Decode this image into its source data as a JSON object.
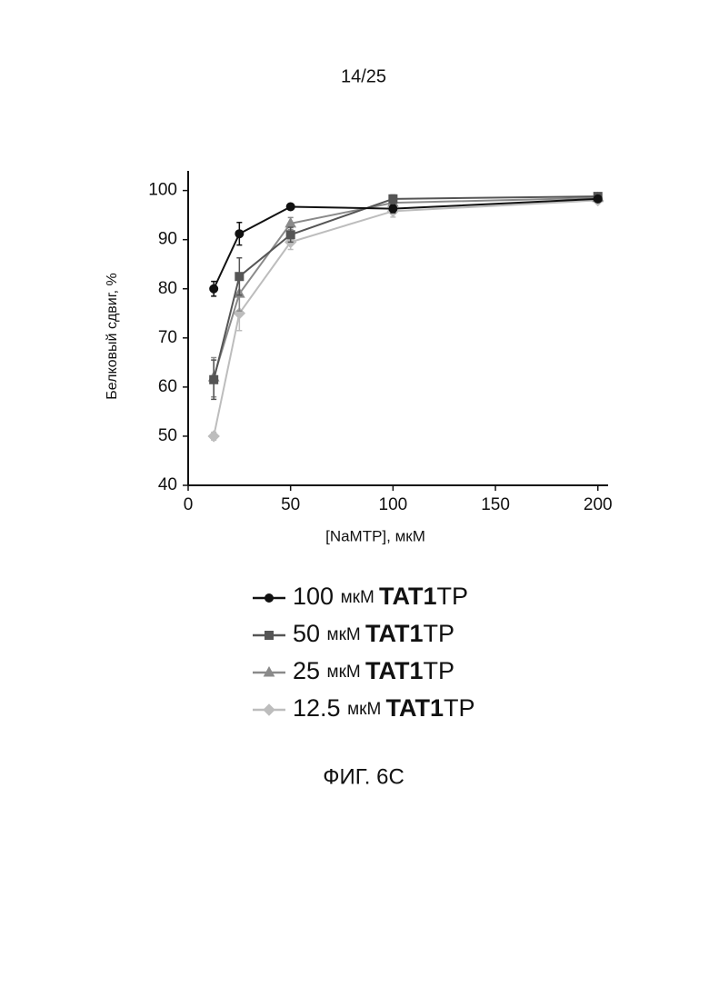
{
  "page_number": "14/25",
  "caption": "ФИГ. 6C",
  "chart_data": {
    "type": "line",
    "xlabel": "[NaMTP], мкМ",
    "ylabel": "Белковый сдвиг, %",
    "x": [
      12.5,
      25,
      50,
      100,
      200
    ],
    "xlim": [
      0,
      205
    ],
    "xticks": [
      0,
      50,
      100,
      150,
      200
    ],
    "ylim": [
      40,
      104
    ],
    "yticks": [
      40,
      50,
      60,
      70,
      80,
      90,
      100
    ],
    "grid": false,
    "series": [
      {
        "name": "100 мкМ TAT1TP",
        "color": "#111111",
        "marker": "circle",
        "values": [
          80,
          91.2,
          96.7,
          96.3,
          98.3
        ],
        "errors": [
          1.5,
          2.3,
          0.4,
          0.8,
          0.5
        ]
      },
      {
        "name": "50 мкМ TAT1TP",
        "color": "#555555",
        "marker": "square",
        "values": [
          61.5,
          82.5,
          91,
          98.3,
          98.8
        ],
        "errors": [
          4,
          3.8,
          1.5,
          0.8,
          0.5
        ]
      },
      {
        "name": "25 мкМ TAT1TP",
        "color": "#8a8a8a",
        "marker": "triangle",
        "values": [
          62,
          79,
          93.3,
          97.5,
          98.5
        ],
        "errors": [
          4,
          3.5,
          1.2,
          0.9,
          0.5
        ]
      },
      {
        "name": "12.5 мкМ TAT1TP",
        "color": "#bdbdbd",
        "marker": "diamond",
        "values": [
          50,
          75,
          89.5,
          95.8,
          98
        ],
        "errors": [
          0.8,
          3.5,
          1.5,
          1.2,
          0.6
        ]
      }
    ]
  }
}
